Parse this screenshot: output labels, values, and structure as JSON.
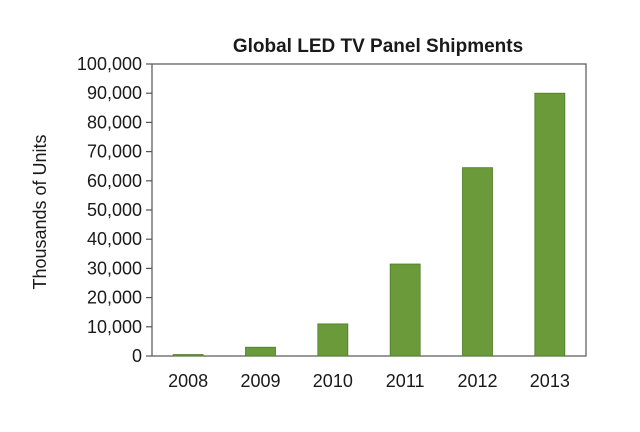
{
  "chart_data": {
    "type": "bar",
    "title": "Global LED TV Panel Shipments",
    "xlabel": "",
    "ylabel": "Thousands of Units",
    "categories": [
      "2008",
      "2009",
      "2010",
      "2011",
      "2012",
      "2013"
    ],
    "values": [
      500,
      3000,
      11000,
      31500,
      64500,
      90000
    ],
    "ylim": [
      0,
      100000
    ],
    "yticks": [
      "0",
      "10,000",
      "20,000",
      "30,000",
      "40,000",
      "50,000",
      "60,000",
      "70,000",
      "80,000",
      "90,000",
      "100,000"
    ],
    "grid": false,
    "legend": "none",
    "bar_color": "#6a9a3a",
    "bar_edge_color": "#4f7a28",
    "axis_color": "#555555"
  }
}
